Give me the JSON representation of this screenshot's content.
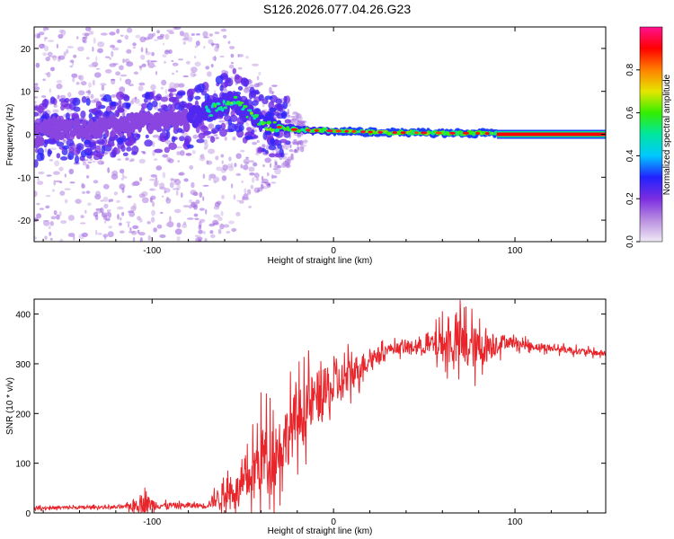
{
  "title": "S126.2026.077.04.26.G23",
  "chart_data": [
    {
      "type": "heatmap",
      "name": "spectrogram",
      "xlabel": "Height of straight line (km)",
      "ylabel": "Frequency (Hz)",
      "xlim": [
        -165,
        150
      ],
      "ylim": [
        -25,
        25
      ],
      "xticks": [
        -100,
        0,
        100
      ],
      "yticks": [
        -20,
        -10,
        0,
        10,
        20
      ],
      "colorbar": {
        "label": "Normalized spectral amplitude",
        "range": [
          0,
          1
        ],
        "ticks": [
          "0.0",
          "0.2",
          "0.4",
          "0.6",
          "0.8"
        ],
        "colors": [
          "#f0eaf6",
          "#b98fe0",
          "#7b2de0",
          "#2222ff",
          "#00c8ff",
          "#00e6a0",
          "#33ee00",
          "#e6e600",
          "#ff8000",
          "#ff0000",
          "#ff1090"
        ]
      },
      "ridge": [
        {
          "x": -160,
          "f": 1.5
        },
        {
          "x": -140,
          "f": 1.0
        },
        {
          "x": -120,
          "f": 2.0
        },
        {
          "x": -100,
          "f": 3.0
        },
        {
          "x": -80,
          "f": 3.5
        },
        {
          "x": -65,
          "f": 6.0
        },
        {
          "x": -55,
          "f": 8.0
        },
        {
          "x": -45,
          "f": 4.0
        },
        {
          "x": -35,
          "f": 2.0
        },
        {
          "x": -20,
          "f": 1.0
        },
        {
          "x": 0,
          "f": 0.8
        },
        {
          "x": 30,
          "f": 0.4
        },
        {
          "x": 60,
          "f": 0.3
        },
        {
          "x": 90,
          "f": 0.2
        },
        {
          "x": 150,
          "f": 0.0
        }
      ],
      "tone": {
        "x_start": 90,
        "x_end": 150,
        "f": 0.0
      }
    },
    {
      "type": "line",
      "name": "snr",
      "xlabel": "Height of straight line (km)",
      "ylabel": "SNR (10 * v/v)",
      "xlim": [
        -165,
        150
      ],
      "ylim": [
        0,
        430
      ],
      "xticks": [
        -100,
        0,
        100
      ],
      "yticks": [
        0,
        100,
        200,
        300,
        400
      ],
      "color": "#e8252b",
      "envelope": [
        {
          "x": -165,
          "base": 10,
          "amp": 6
        },
        {
          "x": -115,
          "base": 12,
          "amp": 6
        },
        {
          "x": -105,
          "base": 20,
          "amp": 40
        },
        {
          "x": -95,
          "base": 15,
          "amp": 12
        },
        {
          "x": -70,
          "base": 15,
          "amp": 10
        },
        {
          "x": -60,
          "base": 40,
          "amp": 55
        },
        {
          "x": -50,
          "base": 50,
          "amp": 60
        },
        {
          "x": -40,
          "base": 110,
          "amp": 140
        },
        {
          "x": -30,
          "base": 130,
          "amp": 130
        },
        {
          "x": -20,
          "base": 190,
          "amp": 120
        },
        {
          "x": -10,
          "base": 230,
          "amp": 110
        },
        {
          "x": 0,
          "base": 250,
          "amp": 90
        },
        {
          "x": 10,
          "base": 280,
          "amp": 70
        },
        {
          "x": 20,
          "base": 310,
          "amp": 35
        },
        {
          "x": 30,
          "base": 330,
          "amp": 20
        },
        {
          "x": 50,
          "base": 335,
          "amp": 30
        },
        {
          "x": 60,
          "base": 340,
          "amp": 70
        },
        {
          "x": 70,
          "base": 340,
          "amp": 100
        },
        {
          "x": 80,
          "base": 330,
          "amp": 80
        },
        {
          "x": 95,
          "base": 345,
          "amp": 25
        },
        {
          "x": 110,
          "base": 335,
          "amp": 15
        },
        {
          "x": 150,
          "base": 320,
          "amp": 12
        }
      ]
    }
  ]
}
